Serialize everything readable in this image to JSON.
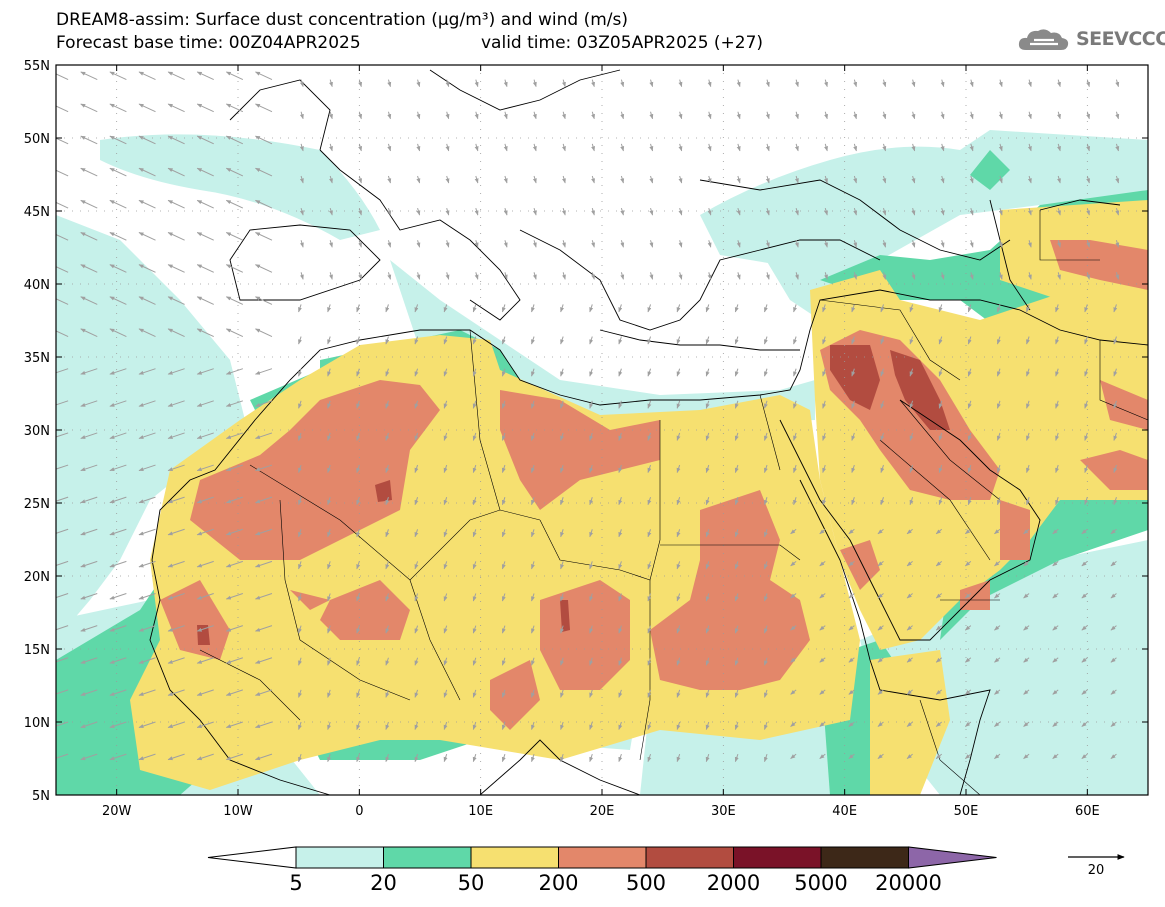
{
  "title": {
    "line1": "DREAM8-assim: Surface dust concentration (µg/m³) and wind (m/s)",
    "base_time": "Forecast base time: 00Z04APR2025",
    "valid_time": "valid time: 03Z05APR2025 (+27)"
  },
  "logo": {
    "text": "SEEVCCC",
    "icon": "cloud-icon"
  },
  "map": {
    "lon_range": [
      -25,
      65
    ],
    "lat_range": [
      5,
      55
    ],
    "lat_ticks": [
      "55N",
      "50N",
      "45N",
      "40N",
      "35N",
      "30N",
      "25N",
      "20N",
      "15N",
      "10N",
      "5N"
    ],
    "lon_ticks": [
      "20W",
      "10W",
      "0",
      "10E",
      "20E",
      "30E",
      "40E",
      "50E",
      "60E"
    ],
    "grid": "dotted"
  },
  "colorbar": {
    "labels": [
      "5",
      "20",
      "50",
      "200",
      "500",
      "2000",
      "5000",
      "20000"
    ],
    "colors": [
      "#c6f1ea",
      "#5fd8a8",
      "#f6e070",
      "#e3876a",
      "#b24c40",
      "#7a1228",
      "#3d2818",
      "#8d66a8"
    ],
    "under_color": "#ffffff"
  },
  "wind_reference": {
    "value": "20"
  }
}
